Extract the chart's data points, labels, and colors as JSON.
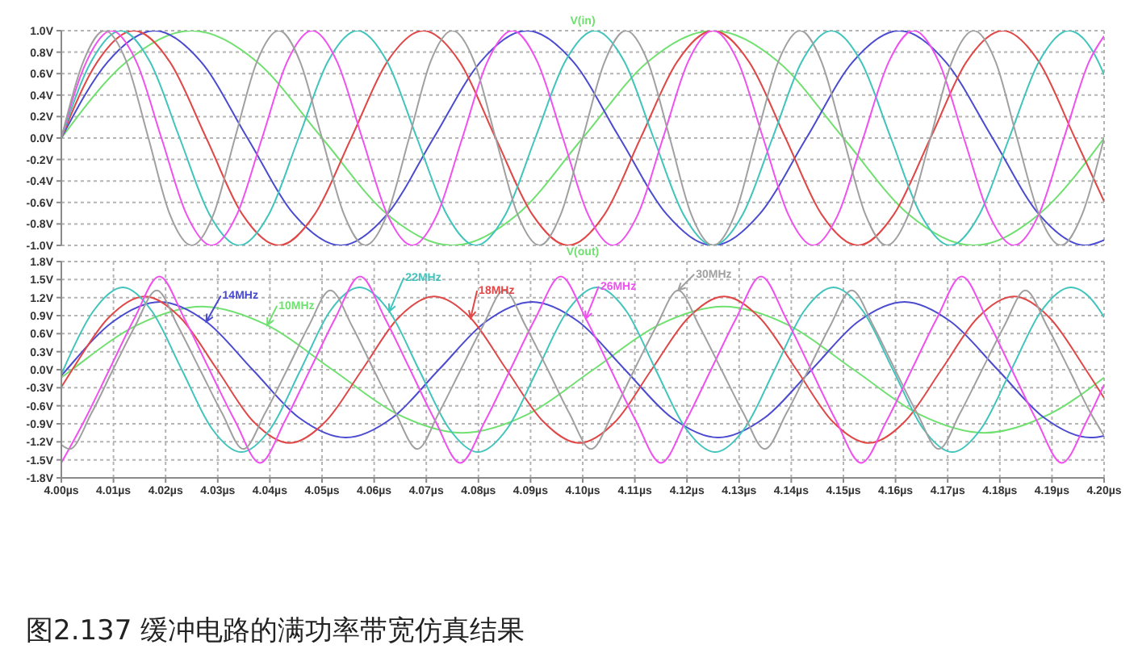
{
  "chart_data": [
    {
      "type": "line",
      "title": "V(in)",
      "xlim": [
        4.0,
        4.2
      ],
      "xticks": [
        {
          "value": 4.0,
          "label": null
        },
        {
          "value": 4.01,
          "label": null
        },
        {
          "value": 4.02,
          "label": null
        },
        {
          "value": 4.03,
          "label": null
        },
        {
          "value": 4.04,
          "label": null
        },
        {
          "value": 4.05,
          "label": null
        },
        {
          "value": 4.06,
          "label": null
        },
        {
          "value": 4.07,
          "label": null
        },
        {
          "value": 4.08,
          "label": null
        },
        {
          "value": 4.09,
          "label": null
        },
        {
          "value": 4.1,
          "label": null
        },
        {
          "value": 4.11,
          "label": null
        },
        {
          "value": 4.12,
          "label": null
        },
        {
          "value": 4.13,
          "label": null
        },
        {
          "value": 4.14,
          "label": null
        },
        {
          "value": 4.15,
          "label": null
        },
        {
          "value": 4.16,
          "label": null
        },
        {
          "value": 4.17,
          "label": null
        },
        {
          "value": 4.18,
          "label": null
        },
        {
          "value": 4.19,
          "label": null
        },
        {
          "value": 4.2,
          "label": null
        }
      ],
      "ylim": [
        -1,
        1
      ],
      "yticks": [
        {
          "value": -1,
          "label": "-1.0V"
        },
        {
          "value": -0.8,
          "label": "-0.8V"
        },
        {
          "value": -0.6,
          "label": "-0.6V"
        },
        {
          "value": -0.4,
          "label": "-0.4V"
        },
        {
          "value": -0.2,
          "label": "-0.2V"
        },
        {
          "value": 0,
          "label": "0.0V"
        },
        {
          "value": 0.2,
          "label": "0.2V"
        },
        {
          "value": 0.4,
          "label": "0.4V"
        },
        {
          "value": 0.6,
          "label": "0.6V"
        },
        {
          "value": 0.8,
          "label": "0.8V"
        },
        {
          "value": 1,
          "label": "1.0V"
        }
      ],
      "grid": true,
      "tick_labels": "y",
      "marker": "none",
      "line_style": "solid",
      "series": [
        {
          "color": "#70e070",
          "x": [
            4.0,
            4.0125,
            4.025,
            4.0375,
            4.05,
            4.0625,
            4.075,
            4.0875,
            4.1,
            4.1125,
            4.125,
            4.1375,
            4.15,
            4.1625,
            4.175,
            4.1875,
            4.2
          ],
          "values": [
            0,
            0.71,
            1,
            0.71,
            0,
            -0.71,
            -1,
            -0.71,
            0,
            0.71,
            1,
            0.71,
            0,
            -0.71,
            -1,
            -0.71,
            0
          ]
        },
        {
          "color": "#4b4bd0",
          "x": [
            4.0,
            4.0089,
            4.0179,
            4.0268,
            4.0357,
            4.0446,
            4.0536,
            4.0625,
            4.0714,
            4.0804,
            4.0893,
            4.0982,
            4.1071,
            4.1161,
            4.125,
            4.1339,
            4.1429,
            4.1518,
            4.1607,
            4.1696,
            4.1786,
            4.1875,
            4.1964,
            4.2
          ],
          "values": [
            0,
            0.71,
            1,
            0.71,
            0,
            -0.71,
            -1,
            -0.71,
            0,
            0.71,
            1,
            0.71,
            0,
            -0.71,
            -1,
            -0.71,
            0,
            0.71,
            1,
            0.71,
            0,
            -0.71,
            -1,
            -0.95
          ]
        },
        {
          "color": "#e04848",
          "x": [
            4.0,
            4.0069,
            4.0139,
            4.0208,
            4.0278,
            4.0347,
            4.0417,
            4.0486,
            4.0556,
            4.0625,
            4.0694,
            4.0764,
            4.0833,
            4.0903,
            4.0972,
            4.1042,
            4.1111,
            4.1181,
            4.125,
            4.1319,
            4.1389,
            4.1458,
            4.1528,
            4.1597,
            4.1667,
            4.1736,
            4.1806,
            4.1875,
            4.1944,
            4.2
          ],
          "values": [
            0,
            0.71,
            1,
            0.71,
            0,
            -0.71,
            -1,
            -0.71,
            0,
            0.71,
            1,
            0.71,
            0,
            -0.71,
            -1,
            -0.71,
            0,
            0.71,
            1,
            0.71,
            0,
            -0.71,
            -1,
            -0.71,
            0,
            0.71,
            1,
            0.71,
            0,
            -0.59
          ]
        },
        {
          "color": "#40c4bc",
          "x": [
            4.0,
            4.0057,
            4.0114,
            4.017,
            4.0227,
            4.0284,
            4.0341,
            4.0398,
            4.0455,
            4.0511,
            4.0568,
            4.0625,
            4.0682,
            4.0739,
            4.0795,
            4.0852,
            4.0909,
            4.0966,
            4.1023,
            4.108,
            4.1136,
            4.1193,
            4.125,
            4.1307,
            4.1364,
            4.142,
            4.1477,
            4.1534,
            4.1591,
            4.1648,
            4.1705,
            4.1761,
            4.1818,
            4.1875,
            4.1932,
            4.1989,
            4.2
          ],
          "values": [
            0,
            0.71,
            1,
            0.71,
            0,
            -0.71,
            -1,
            -0.71,
            0,
            0.71,
            1,
            0.71,
            0,
            -0.71,
            -1,
            -0.71,
            0,
            0.71,
            1,
            0.71,
            0,
            -0.71,
            -1,
            -0.71,
            0,
            0.71,
            1,
            0.71,
            0,
            -0.71,
            -1,
            -0.71,
            0,
            0.71,
            1,
            0.71,
            0.59
          ]
        },
        {
          "color": "#f050f0",
          "x": [
            4.0,
            4.0048,
            4.0096,
            4.0144,
            4.0192,
            4.024,
            4.0288,
            4.0337,
            4.0385,
            4.0433,
            4.0481,
            4.0529,
            4.0577,
            4.0625,
            4.0673,
            4.0721,
            4.0769,
            4.0817,
            4.0865,
            4.0913,
            4.0962,
            4.101,
            4.1058,
            4.1106,
            4.1154,
            4.1202,
            4.125,
            4.1298,
            4.1346,
            4.1394,
            4.1442,
            4.149,
            4.1538,
            4.1587,
            4.1635,
            4.1683,
            4.1731,
            4.1779,
            4.1827,
            4.1875,
            4.1923,
            4.1971,
            4.2
          ],
          "values": [
            0,
            0.71,
            1,
            0.71,
            0,
            -0.71,
            -1,
            -0.71,
            0,
            0.71,
            1,
            0.71,
            0,
            -0.71,
            -1,
            -0.71,
            0,
            0.71,
            1,
            0.71,
            0,
            -0.71,
            -1,
            -0.71,
            0,
            0.71,
            1,
            0.71,
            0,
            -0.71,
            -1,
            -0.71,
            0,
            0.71,
            1,
            0.71,
            0,
            -0.71,
            -1,
            -0.71,
            0,
            0.71,
            0.95
          ]
        },
        {
          "color": "#a0a0a0",
          "x": [
            4.0,
            4.0042,
            4.0083,
            4.0125,
            4.0167,
            4.0208,
            4.025,
            4.0292,
            4.0333,
            4.0375,
            4.0417,
            4.0458,
            4.05,
            4.0542,
            4.0583,
            4.0625,
            4.0667,
            4.0708,
            4.075,
            4.0792,
            4.0833,
            4.0875,
            4.0917,
            4.0958,
            4.1,
            4.1042,
            4.1083,
            4.1125,
            4.1167,
            4.1208,
            4.125,
            4.1292,
            4.1333,
            4.1375,
            4.1417,
            4.1458,
            4.15,
            4.1542,
            4.1583,
            4.1625,
            4.1667,
            4.1708,
            4.175,
            4.1792,
            4.1833,
            4.1875,
            4.1917,
            4.1958,
            4.2
          ],
          "values": [
            0,
            0.71,
            1,
            0.71,
            0,
            -0.71,
            -1,
            -0.71,
            0,
            0.71,
            1,
            0.71,
            0,
            -0.71,
            -1,
            -0.71,
            0,
            0.71,
            1,
            0.71,
            0,
            -0.71,
            -1,
            -0.71,
            0,
            0.71,
            1,
            0.71,
            0,
            -0.71,
            -1,
            -0.71,
            0,
            0.71,
            1,
            0.71,
            0,
            -0.71,
            -1,
            -0.71,
            0,
            0.71,
            1,
            0.71,
            0,
            -0.71,
            -1,
            -0.71,
            0
          ]
        }
      ]
    },
    {
      "type": "line",
      "title": "V(out)",
      "xlim": [
        4.0,
        4.2
      ],
      "xticks": [
        {
          "value": 4.0,
          "label": "4.00µs"
        },
        {
          "value": 4.01,
          "label": "4.01µs"
        },
        {
          "value": 4.02,
          "label": "4.02µs"
        },
        {
          "value": 4.03,
          "label": "4.03µs"
        },
        {
          "value": 4.04,
          "label": "4.04µs"
        },
        {
          "value": 4.05,
          "label": "4.05µs"
        },
        {
          "value": 4.06,
          "label": "4.06µs"
        },
        {
          "value": 4.07,
          "label": "4.07µs"
        },
        {
          "value": 4.08,
          "label": "4.08µs"
        },
        {
          "value": 4.09,
          "label": "4.09µs"
        },
        {
          "value": 4.1,
          "label": "4.10µs"
        },
        {
          "value": 4.11,
          "label": "4.11µs"
        },
        {
          "value": 4.12,
          "label": "4.12µs"
        },
        {
          "value": 4.13,
          "label": "4.13µs"
        },
        {
          "value": 4.14,
          "label": "4.14µs"
        },
        {
          "value": 4.15,
          "label": "4.15µs"
        },
        {
          "value": 4.16,
          "label": "4.16µs"
        },
        {
          "value": 4.17,
          "label": "4.17µs"
        },
        {
          "value": 4.18,
          "label": "4.18µs"
        },
        {
          "value": 4.19,
          "label": "4.19µs"
        },
        {
          "value": 4.2,
          "label": "4.20µs"
        }
      ],
      "ylim": [
        -1.8,
        1.8
      ],
      "yticks": [
        {
          "value": -1.8,
          "label": "-1.8V"
        },
        {
          "value": -1.5,
          "label": "-1.5V"
        },
        {
          "value": -1.2,
          "label": "-1.2V"
        },
        {
          "value": -0.9,
          "label": "-0.9V"
        },
        {
          "value": -0.6,
          "label": "-0.6V"
        },
        {
          "value": -0.3,
          "label": "-0.3V"
        },
        {
          "value": 0,
          "label": "0.0V"
        },
        {
          "value": 0.3,
          "label": "0.3V"
        },
        {
          "value": 0.6,
          "label": "0.6V"
        },
        {
          "value": 0.9,
          "label": "0.9V"
        },
        {
          "value": 1.2,
          "label": "1.2V"
        },
        {
          "value": 1.5,
          "label": "1.5V"
        },
        {
          "value": 1.8,
          "label": "1.8V"
        }
      ],
      "grid": true,
      "marker": "none",
      "line_style": "solid",
      "annotations": [
        "图2.137 缓冲电路的满功率带宽仿真结果"
      ],
      "series": [
        {
          "name": "10MHz",
          "color": "#70e070",
          "x": [
            4.0,
            4.002,
            4.0145,
            4.027,
            4.0395,
            4.052,
            4.0645,
            4.077,
            4.0895,
            4.102,
            4.1145,
            4.127,
            4.1395,
            4.152,
            4.1645,
            4.177,
            4.1895,
            4.2
          ],
          "values": [
            -0.13,
            0,
            0.74,
            1.05,
            0.74,
            0,
            -0.74,
            -1.05,
            -0.74,
            0,
            0.74,
            1.05,
            0.74,
            0,
            -0.74,
            -1.05,
            -0.74,
            -0.13
          ]
        },
        {
          "name": "14MHz",
          "color": "#4b4bd0",
          "x": [
            4.0,
            4.001,
            4.0099,
            4.0189,
            4.0278,
            4.0367,
            4.0456,
            4.0546,
            4.0635,
            4.0724,
            4.0814,
            4.0903,
            4.0992,
            4.1081,
            4.1171,
            4.126,
            4.1349,
            4.1439,
            4.1528,
            4.1617,
            4.1706,
            4.1796,
            4.1885,
            4.1974,
            4.2
          ],
          "values": [
            -0.1,
            0,
            0.8,
            1.13,
            0.8,
            0,
            -0.8,
            -1.13,
            -0.8,
            0,
            0.8,
            1.13,
            0.8,
            0,
            -0.8,
            -1.13,
            -0.8,
            0,
            0.8,
            1.13,
            0.8,
            0,
            -0.8,
            -1.13,
            -1.1
          ]
        },
        {
          "name": "18MHz",
          "color": "#e04848",
          "x": [
            4.0,
            4.0021,
            4.009,
            4.016,
            4.0229,
            4.0299,
            4.0368,
            4.0438,
            4.0507,
            4.0577,
            4.0646,
            4.0715,
            4.0785,
            4.0854,
            4.0924,
            4.0993,
            4.1063,
            4.1132,
            4.1202,
            4.1271,
            4.134,
            4.141,
            4.1479,
            4.1549,
            4.1618,
            4.1688,
            4.1757,
            4.1827,
            4.1896,
            4.1965,
            4.2
          ],
          "values": [
            -0.29,
            0,
            0.86,
            1.22,
            0.86,
            0,
            -0.86,
            -1.22,
            -0.86,
            0,
            0.86,
            1.22,
            0.86,
            0,
            -0.86,
            -1.22,
            -0.86,
            0,
            0.86,
            1.22,
            0.86,
            0,
            -0.86,
            -1.22,
            -0.86,
            0,
            0.86,
            1.22,
            0.86,
            0,
            -0.47
          ]
        },
        {
          "name": "22MHz",
          "color": "#40c4bc",
          "x": [
            4.0,
            4.0004,
            4.0061,
            4.0118,
            4.0174,
            4.0231,
            4.0288,
            4.0345,
            4.0402,
            4.0459,
            4.0515,
            4.0572,
            4.0629,
            4.0686,
            4.0743,
            4.0799,
            4.0856,
            4.0913,
            4.097,
            4.1027,
            4.1084,
            4.114,
            4.1197,
            4.1254,
            4.1311,
            4.1368,
            4.1424,
            4.1481,
            4.1538,
            4.1595,
            4.1652,
            4.1709,
            4.1765,
            4.1822,
            4.1879,
            4.1936,
            4.1993,
            4.2
          ],
          "values": [
            -0.08,
            0,
            0.97,
            1.37,
            0.97,
            0,
            -0.97,
            -1.37,
            -0.97,
            0,
            0.97,
            1.37,
            0.97,
            0,
            -0.97,
            -1.37,
            -0.97,
            0,
            0.97,
            1.37,
            0.97,
            0,
            -0.97,
            -1.37,
            -0.97,
            0,
            0.97,
            1.37,
            0.97,
            0,
            -0.97,
            -1.37,
            -0.97,
            0,
            0.97,
            1.37,
            0.97,
            0.87
          ]
        },
        {
          "name": "26MHz",
          "color": "#f050f0",
          "x": [
            4.0,
            4.0044,
            4.0092,
            4.014,
            4.0188,
            4.0236,
            4.0284,
            4.0333,
            4.0381,
            4.0429,
            4.0477,
            4.0525,
            4.0573,
            4.0621,
            4.0669,
            4.0717,
            4.0765,
            4.0813,
            4.0861,
            4.0909,
            4.0958,
            4.1006,
            4.1054,
            4.1102,
            4.115,
            4.1198,
            4.1246,
            4.1294,
            4.1342,
            4.139,
            4.1438,
            4.1486,
            4.1534,
            4.1583,
            4.1631,
            4.1679,
            4.1727,
            4.1775,
            4.1823,
            4.1871,
            4.1919,
            4.1967,
            4.2
          ],
          "values": [
            -1.55,
            -0.85,
            0,
            0.85,
            1.55,
            0.85,
            0,
            -0.85,
            -1.55,
            -0.85,
            0,
            0.85,
            1.55,
            0.85,
            0,
            -0.85,
            -1.55,
            -0.85,
            0,
            0.85,
            1.55,
            0.85,
            0,
            -0.85,
            -1.55,
            -0.85,
            0,
            0.85,
            1.55,
            0.85,
            0,
            -0.85,
            -1.55,
            -0.85,
            0,
            0.85,
            1.55,
            0.85,
            0,
            -0.85,
            -1.55,
            -0.85,
            -0.25
          ]
        },
        {
          "name": "30MHz",
          "color": "#a0a0a0",
          "x": [
            4.0,
            4.0016,
            4.0058,
            4.0099,
            4.0141,
            4.0183,
            4.0224,
            4.0266,
            4.0308,
            4.0349,
            4.0391,
            4.0433,
            4.0474,
            4.0516,
            4.0558,
            4.0599,
            4.0641,
            4.0683,
            4.0724,
            4.0766,
            4.0808,
            4.0849,
            4.0891,
            4.0933,
            4.0974,
            4.1016,
            4.1058,
            4.1099,
            4.1141,
            4.1183,
            4.1224,
            4.1266,
            4.1308,
            4.1349,
            4.1391,
            4.1433,
            4.1474,
            4.1516,
            4.1558,
            4.1599,
            4.1641,
            4.1683,
            4.1724,
            4.1766,
            4.1808,
            4.1849,
            4.1891,
            4.1933,
            4.1974,
            4.2
          ],
          "values": [
            -1.25,
            -1.32,
            -0.72,
            0,
            0.72,
            1.32,
            0.72,
            0,
            -0.72,
            -1.32,
            -0.72,
            0,
            0.72,
            1.32,
            0.72,
            0,
            -0.72,
            -1.32,
            -0.72,
            0,
            0.72,
            1.32,
            0.72,
            0,
            -0.72,
            -1.32,
            -0.72,
            0,
            0.72,
            1.32,
            0.72,
            0,
            -0.72,
            -1.32,
            -0.72,
            0,
            0.72,
            1.32,
            0.72,
            0,
            -0.72,
            -1.32,
            -0.72,
            0,
            0.72,
            1.32,
            0.72,
            0,
            -0.72,
            -1.1
          ]
        }
      ]
    }
  ]
}
